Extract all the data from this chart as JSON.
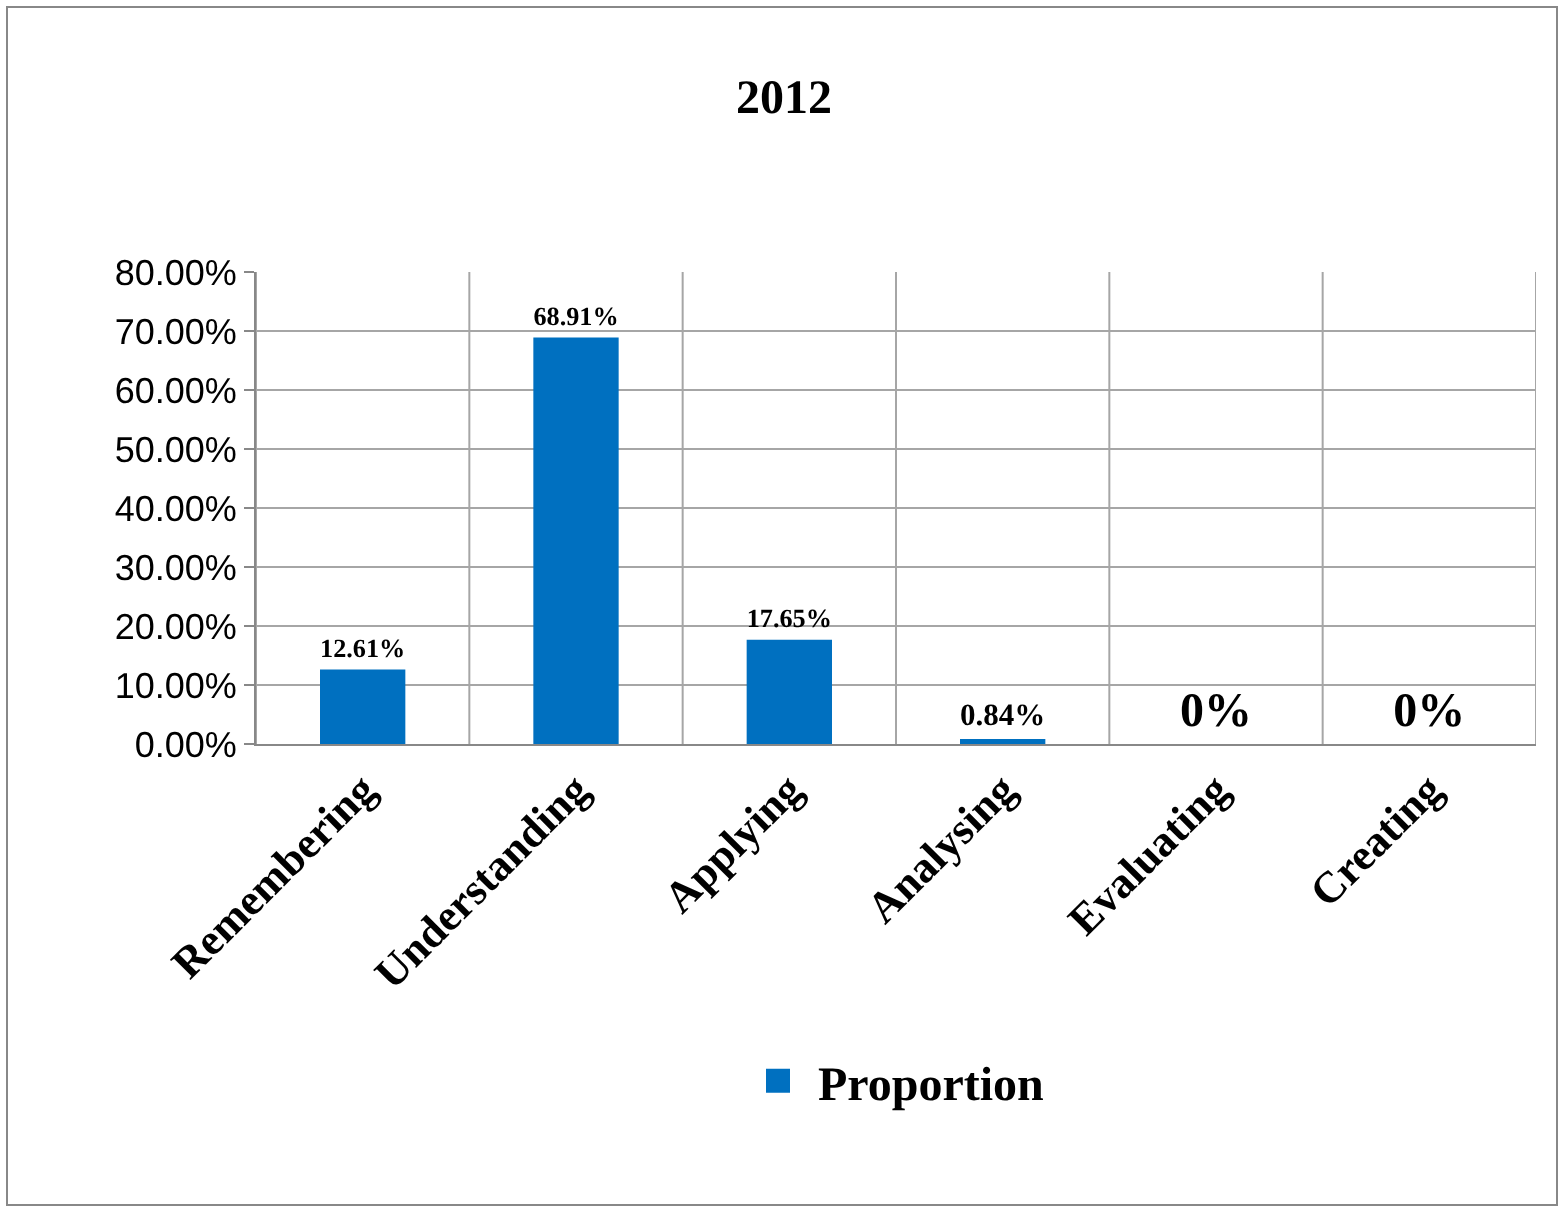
{
  "chart_data": {
    "type": "bar",
    "title": "2012",
    "categories": [
      "Remembering",
      "Understanding",
      "Applying",
      "Analysing",
      "Evaluating",
      "Creating"
    ],
    "series": [
      {
        "name": "Proportion",
        "color": "#0070c0",
        "values": [
          12.61,
          68.91,
          17.65,
          0.84,
          0,
          0
        ],
        "value_labels": [
          "12.61%",
          "68.91%",
          "17.65%",
          "0.84%",
          "0%",
          "0%"
        ]
      }
    ],
    "ylim": [
      0,
      80
    ],
    "yticks": [
      {
        "value": 0,
        "label": "0.00%"
      },
      {
        "value": 10,
        "label": "10.00%"
      },
      {
        "value": 20,
        "label": "20.00%"
      },
      {
        "value": 30,
        "label": "30.00%"
      },
      {
        "value": 40,
        "label": "40.00%"
      },
      {
        "value": 50,
        "label": "50.00%"
      },
      {
        "value": 60,
        "label": "60.00%"
      },
      {
        "value": 70,
        "label": "70.00%"
      },
      {
        "value": 80,
        "label": "80.00%"
      }
    ],
    "grid": true,
    "legend": "bottom"
  }
}
